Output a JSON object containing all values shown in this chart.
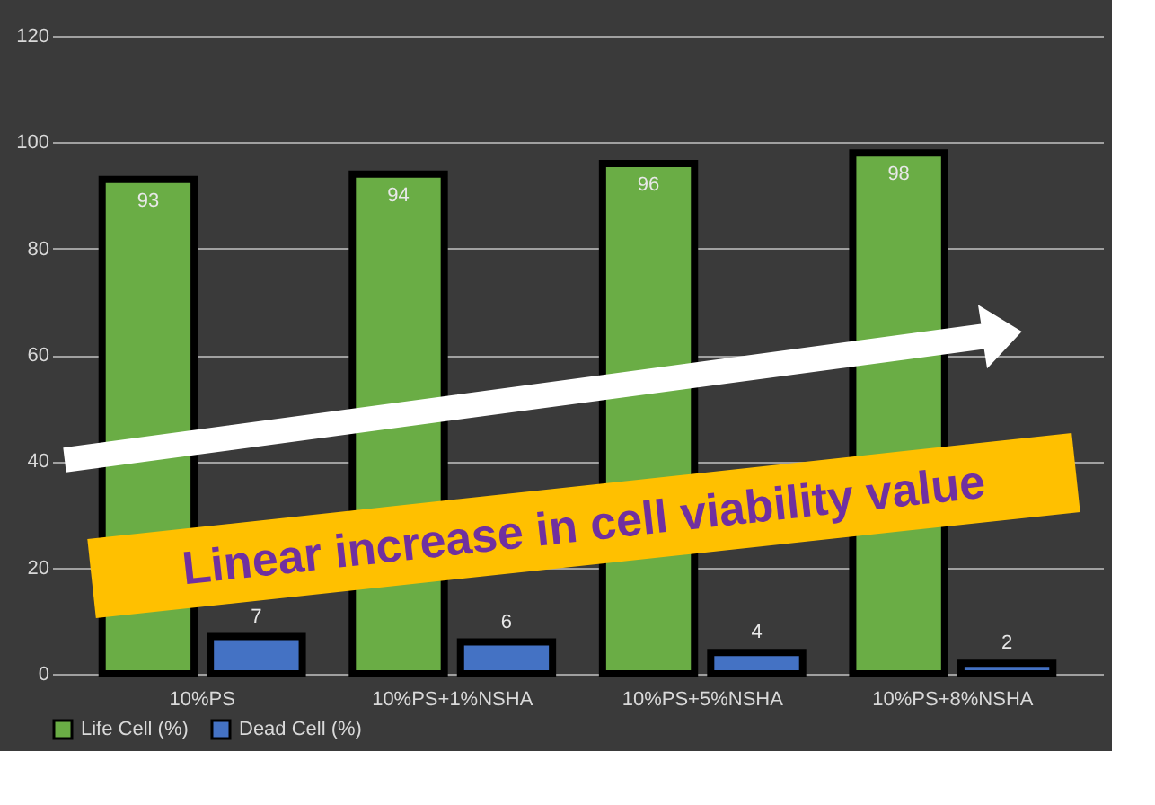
{
  "chart_data": {
    "type": "bar",
    "categories": [
      "10%PS",
      "10%PS+1%NSHA",
      "10%PS+5%NSHA",
      "10%PS+8%NSHA"
    ],
    "series": [
      {
        "name": "Life Cell (%)",
        "color": "#6aad45",
        "values": [
          93,
          94,
          96,
          98
        ]
      },
      {
        "name": "Dead Cell (%)",
        "color": "#4472c4",
        "values": [
          7,
          6,
          4,
          2
        ]
      }
    ],
    "ylim": [
      0,
      120
    ],
    "yticks": [
      0,
      20,
      40,
      60,
      80,
      100,
      120
    ],
    "grid": "y",
    "legend": "bottom",
    "data_labels": true,
    "annotations": [
      "Linear increase in cell viability value"
    ]
  }
}
